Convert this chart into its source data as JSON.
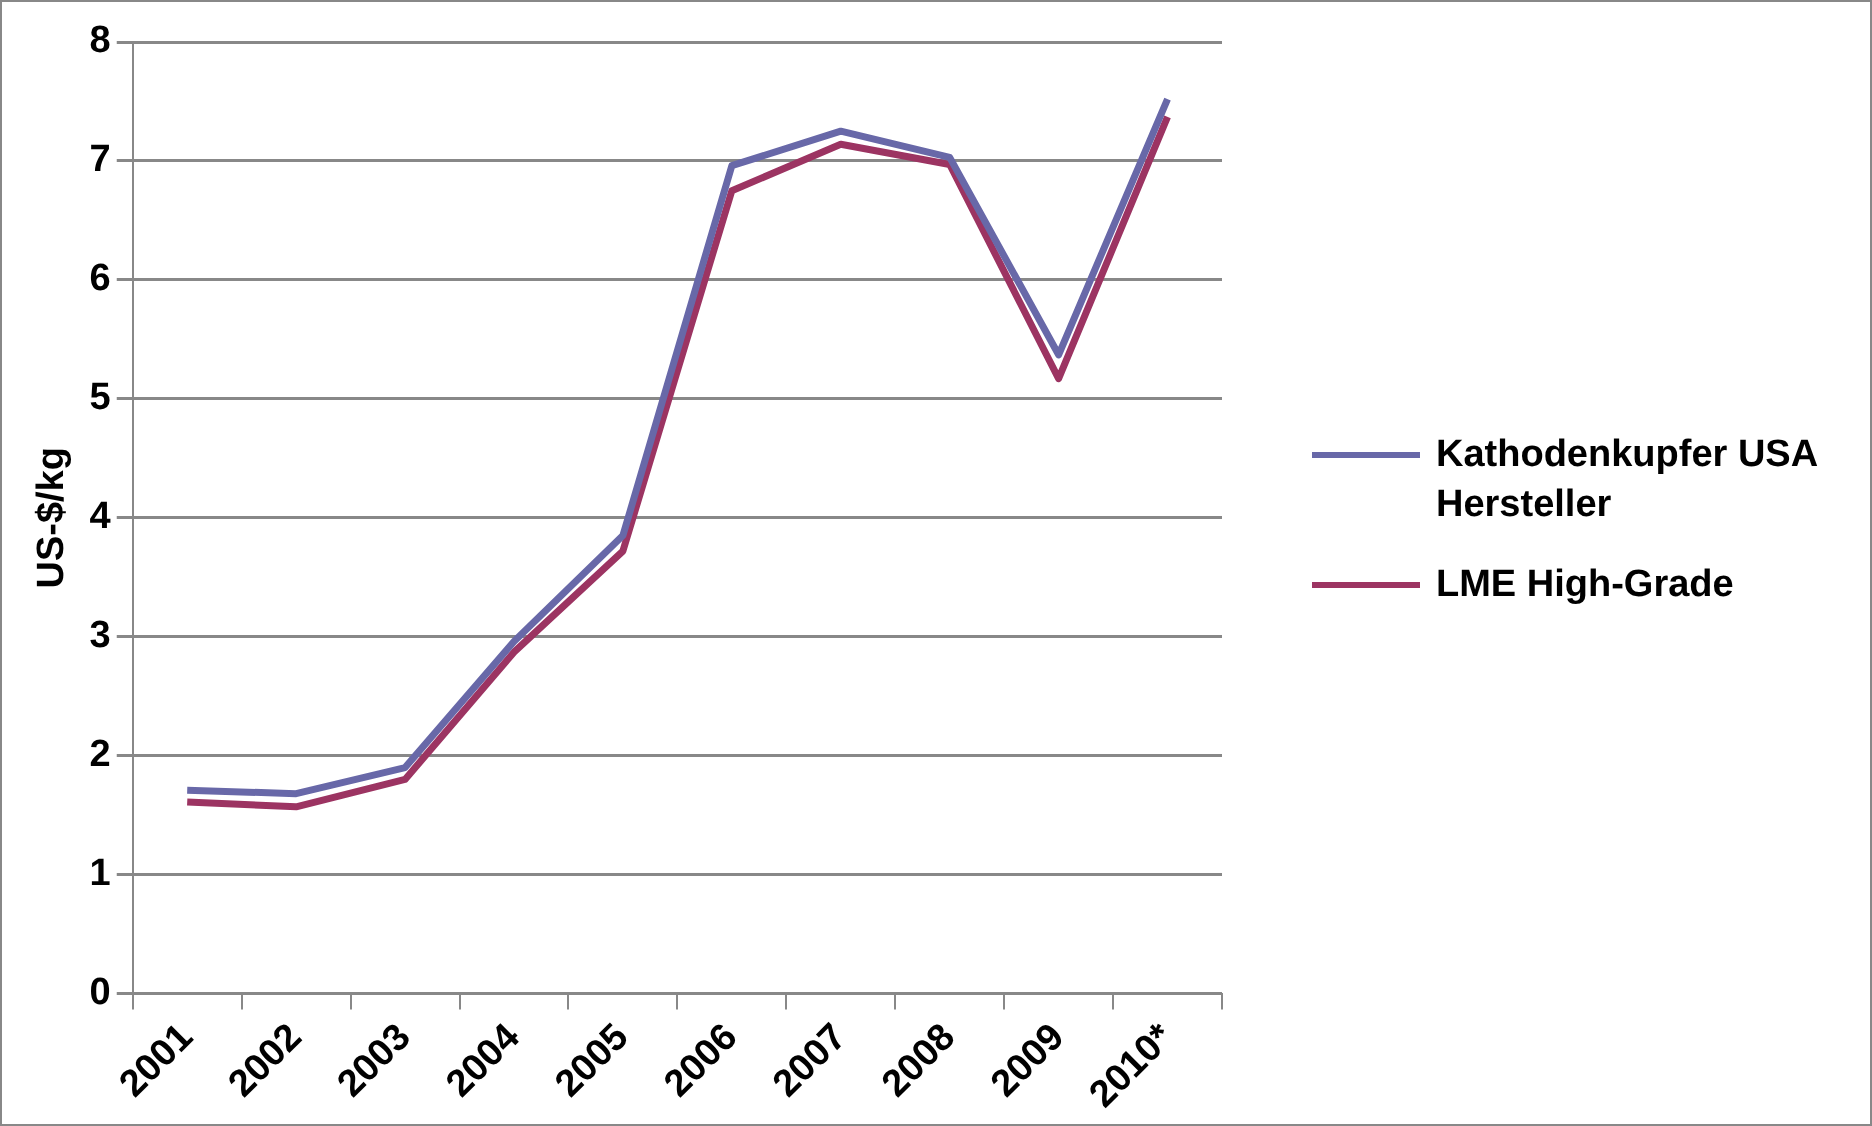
{
  "chart_data": {
    "type": "line",
    "ylabel": "US-$/kg",
    "categories": [
      "2001",
      "2002",
      "2003",
      "2004",
      "2005",
      "2006",
      "2007",
      "2008",
      "2009",
      "2010*"
    ],
    "series": [
      {
        "name": "Kathodenkupfer USA Hersteller",
        "color": "#6868a8",
        "values": [
          1.71,
          1.68,
          1.9,
          2.96,
          3.85,
          6.96,
          7.25,
          7.03,
          5.37,
          7.52
        ]
      },
      {
        "name": "LME High-Grade",
        "color": "#9c3462",
        "values": [
          1.61,
          1.57,
          1.8,
          2.87,
          3.72,
          6.75,
          7.14,
          6.97,
          5.17,
          7.37
        ]
      }
    ],
    "ylim": [
      0,
      8
    ],
    "yticks": [
      0,
      1,
      2,
      3,
      4,
      5,
      6,
      7,
      8
    ],
    "grid": "y",
    "legend": "right",
    "marker": "none",
    "line_style": "solid"
  }
}
